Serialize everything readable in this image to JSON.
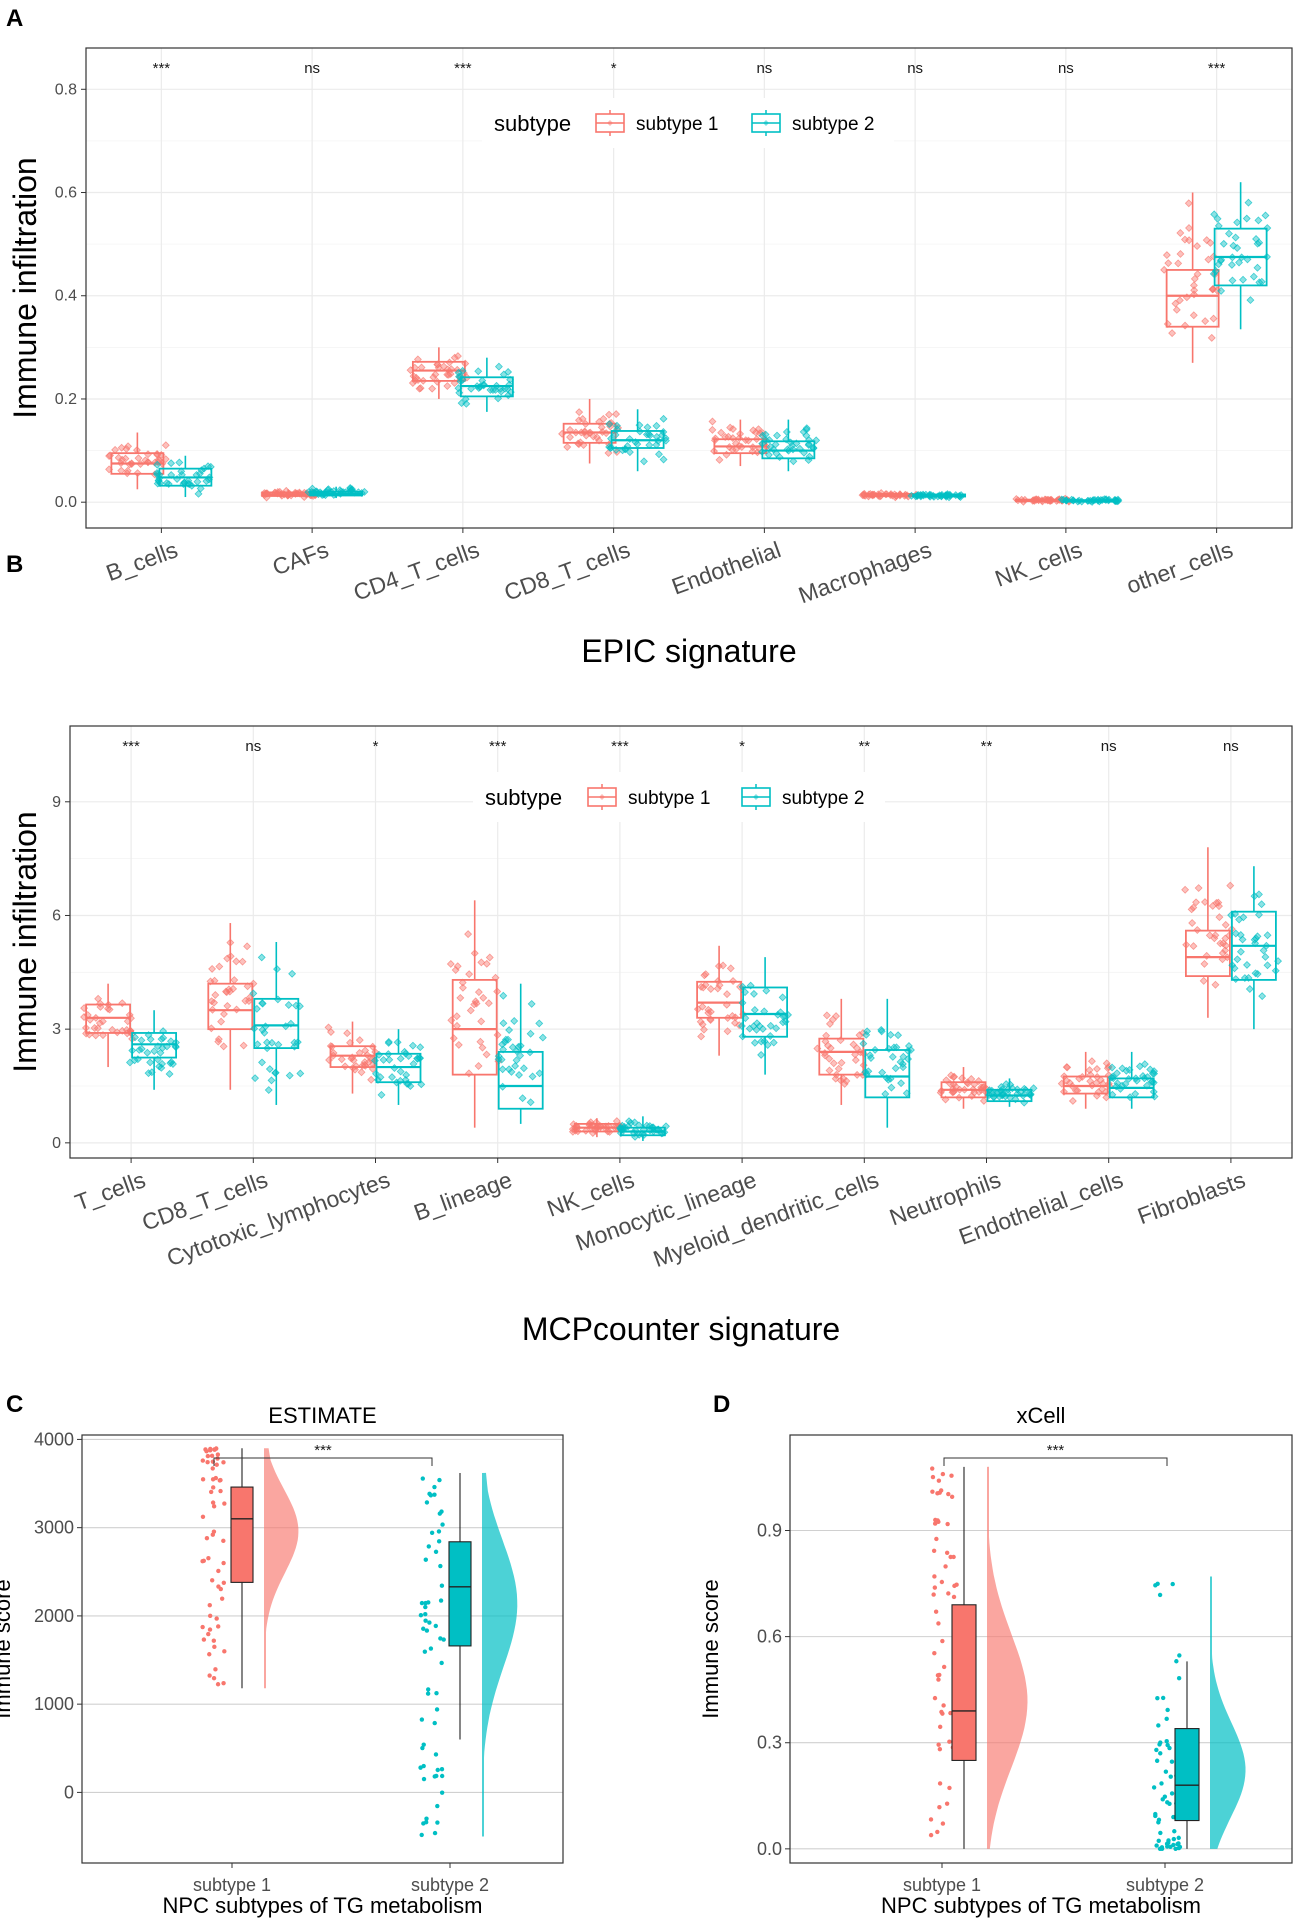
{
  "colors": {
    "subtype1": "#F8766D",
    "subtype2": "#00BFC4"
  },
  "panels": {
    "A": "A",
    "B": "B",
    "C": "C",
    "D": "D"
  },
  "legend": {
    "title": "subtype",
    "items": [
      "subtype 1",
      "subtype 2"
    ]
  },
  "chart_data": [
    {
      "id": "A",
      "type": "box",
      "xlabel": "EPIC signature",
      "ylabel": "Immune infiltration",
      "ylim": [
        -0.05,
        0.88
      ],
      "yticks": [
        0.0,
        0.2,
        0.4,
        0.6,
        0.8
      ],
      "ytick_labels": [
        "0.0",
        "0.2",
        "0.4",
        "0.6",
        "0.8"
      ],
      "categories": [
        "B_cells",
        "CAFs",
        "CD4_T_cells",
        "CD8_T_cells",
        "Endothelial",
        "Macrophages",
        "NK_cells",
        "other_cells"
      ],
      "significance": [
        "***",
        "ns",
        "***",
        "*",
        "ns",
        "ns",
        "ns",
        "***"
      ],
      "series": [
        {
          "name": "subtype 1",
          "q1": [
            0.055,
            0.012,
            0.235,
            0.115,
            0.095,
            0.012,
            0.002,
            0.34
          ],
          "median": [
            0.075,
            0.015,
            0.255,
            0.135,
            0.108,
            0.014,
            0.003,
            0.4
          ],
          "q3": [
            0.095,
            0.019,
            0.272,
            0.152,
            0.122,
            0.016,
            0.005,
            0.45
          ],
          "lower": [
            0.025,
            0.007,
            0.2,
            0.075,
            0.07,
            0.009,
            0.0,
            0.27
          ],
          "upper": [
            0.135,
            0.025,
            0.3,
            0.2,
            0.16,
            0.019,
            0.008,
            0.6
          ]
        },
        {
          "name": "subtype 2",
          "q1": [
            0.032,
            0.013,
            0.205,
            0.105,
            0.085,
            0.011,
            0.001,
            0.42
          ],
          "median": [
            0.048,
            0.016,
            0.225,
            0.12,
            0.1,
            0.013,
            0.002,
            0.475
          ],
          "q3": [
            0.065,
            0.02,
            0.242,
            0.138,
            0.118,
            0.015,
            0.004,
            0.53
          ],
          "lower": [
            0.01,
            0.008,
            0.175,
            0.06,
            0.06,
            0.008,
            0.0,
            0.335
          ],
          "upper": [
            0.09,
            0.03,
            0.28,
            0.18,
            0.16,
            0.018,
            0.007,
            0.62
          ]
        }
      ]
    },
    {
      "id": "B",
      "type": "box",
      "xlabel": "MCPcounter signature",
      "ylabel": "Immune infiltration",
      "ylim": [
        -0.4,
        11.0
      ],
      "yticks": [
        0,
        3,
        6,
        9
      ],
      "ytick_labels": [
        "0",
        "3",
        "6",
        "9"
      ],
      "categories": [
        "T_cells",
        "CD8_T_cells",
        "Cytotoxic_lymphocytes",
        "B_lineage",
        "NK_cells",
        "Monocytic_lineage",
        "Myeloid_dendritic_cells",
        "Neutrophils",
        "Endothelial_cells",
        "Fibroblasts"
      ],
      "significance": [
        "***",
        "ns",
        "*",
        "***",
        "***",
        "*",
        "**",
        "**",
        "ns",
        "ns"
      ],
      "series": [
        {
          "name": "subtype 1",
          "q1": [
            2.9,
            3.0,
            2.0,
            1.8,
            0.3,
            3.3,
            1.8,
            1.2,
            1.3,
            4.4
          ],
          "median": [
            3.3,
            3.5,
            2.3,
            3.0,
            0.4,
            3.7,
            2.4,
            1.4,
            1.5,
            4.9
          ],
          "q3": [
            3.65,
            4.2,
            2.55,
            4.3,
            0.5,
            4.25,
            2.75,
            1.6,
            1.75,
            5.6
          ],
          "lower": [
            2.0,
            1.4,
            1.3,
            0.4,
            0.15,
            2.3,
            1.0,
            0.9,
            0.9,
            3.3
          ],
          "upper": [
            4.2,
            5.8,
            3.2,
            6.4,
            0.65,
            5.2,
            3.8,
            2.0,
            2.4,
            7.8
          ]
        },
        {
          "name": "subtype 2",
          "q1": [
            2.25,
            2.5,
            1.6,
            0.9,
            0.2,
            2.8,
            1.2,
            1.1,
            1.2,
            4.3
          ],
          "median": [
            2.6,
            3.1,
            2.0,
            1.5,
            0.3,
            3.4,
            1.75,
            1.25,
            1.45,
            5.2
          ],
          "q3": [
            2.9,
            3.8,
            2.35,
            2.4,
            0.4,
            4.1,
            2.45,
            1.4,
            1.7,
            6.1
          ],
          "lower": [
            1.4,
            1.0,
            1.0,
            0.5,
            0.05,
            1.8,
            0.4,
            0.95,
            0.9,
            3.0
          ],
          "upper": [
            3.5,
            5.3,
            3.0,
            4.2,
            0.7,
            4.9,
            3.8,
            1.7,
            2.4,
            7.3
          ]
        }
      ]
    },
    {
      "id": "C",
      "type": "raincloud",
      "title": "ESTIMATE",
      "xlabel": "NPC subtypes of TG metabolism",
      "ylabel": "Immune score",
      "ylim": [
        -800,
        4050
      ],
      "yticks": [
        0,
        1000,
        2000,
        3000,
        4000
      ],
      "ytick_labels": [
        "0",
        "1000",
        "2000",
        "3000",
        "4000"
      ],
      "categories": [
        "subtype 1",
        "subtype 2"
      ],
      "significance": "***",
      "box": [
        {
          "q1": 2380,
          "median": 3100,
          "q3": 3460,
          "lower": 1180,
          "upper": 3900
        },
        {
          "q1": 1660,
          "median": 2330,
          "q3": 2840,
          "lower": 600,
          "upper": 3620
        }
      ],
      "range": [
        [
          1180,
          3900
        ],
        [
          -500,
          3620
        ]
      ]
    },
    {
      "id": "D",
      "type": "raincloud",
      "title": "xCell",
      "xlabel": "NPC subtypes of TG metabolism",
      "ylabel": "Immune score",
      "ylim": [
        -0.04,
        1.17
      ],
      "yticks": [
        0.0,
        0.3,
        0.6,
        0.9
      ],
      "ytick_labels": [
        "0.0",
        "0.3",
        "0.6",
        "0.9"
      ],
      "categories": [
        "subtype 1",
        "subtype 2"
      ],
      "significance": "***",
      "box": [
        {
          "q1": 0.25,
          "median": 0.39,
          "q3": 0.69,
          "lower": 0.0,
          "upper": 1.08
        },
        {
          "q1": 0.08,
          "median": 0.18,
          "q3": 0.34,
          "lower": 0.0,
          "upper": 0.53
        }
      ],
      "range": [
        [
          0.0,
          1.08
        ],
        [
          0.0,
          0.77
        ]
      ]
    }
  ]
}
